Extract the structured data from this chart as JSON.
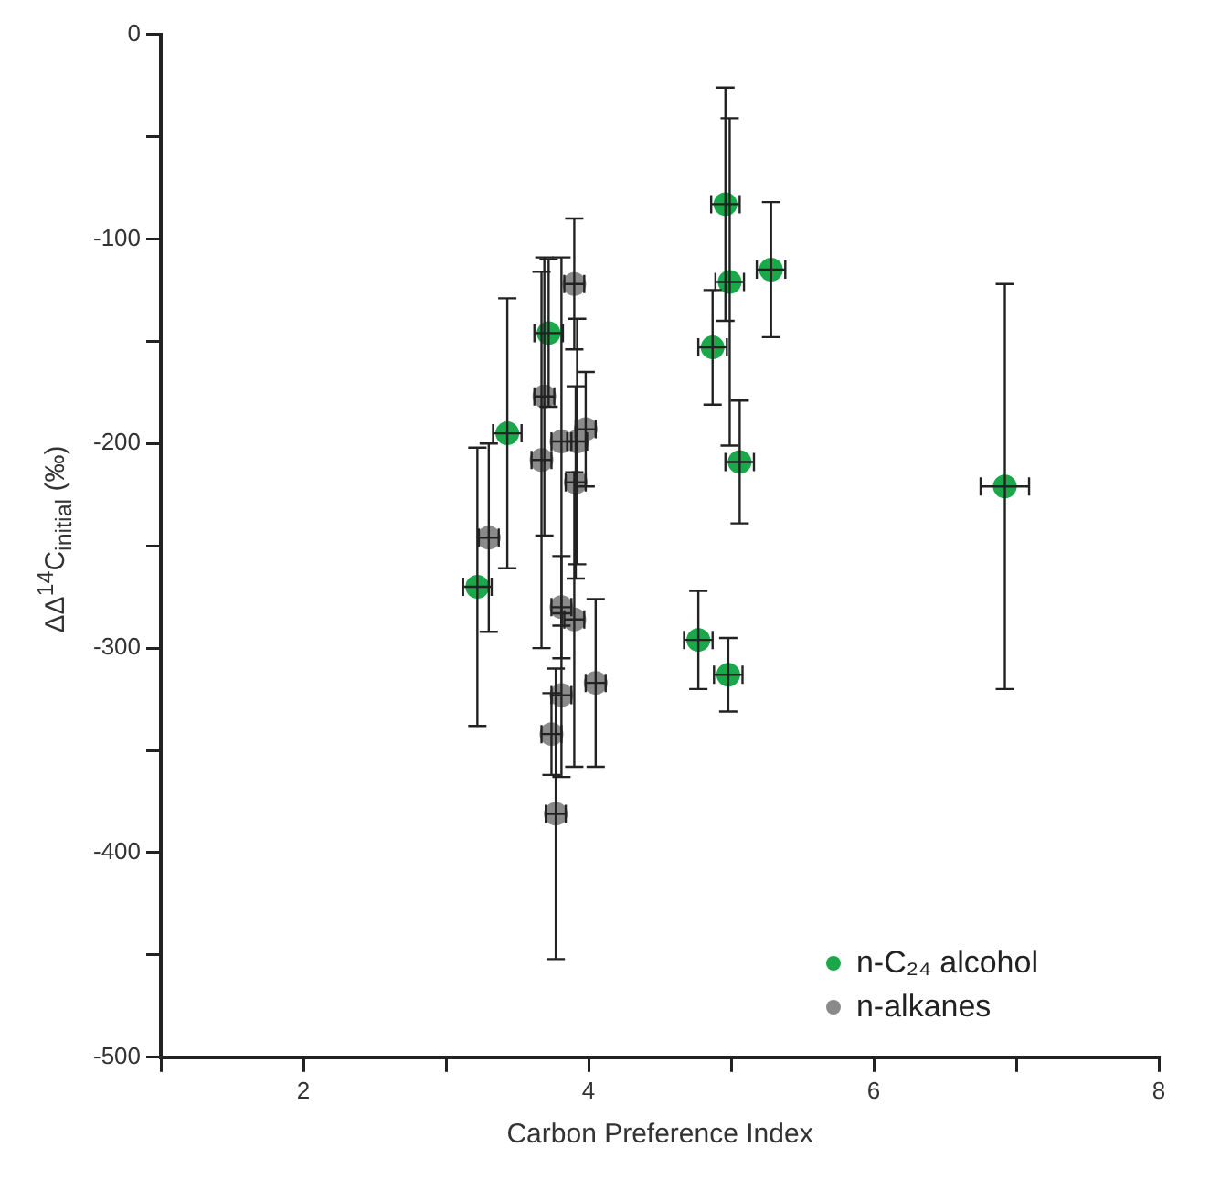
{
  "chart_data": {
    "type": "scatter",
    "xlabel": "Carbon Preference Index",
    "ylabel": "ΔΔ$^{14}$C$_{initial}$ (‰)",
    "xlim": [
      1,
      8
    ],
    "xticks": [
      {
        "value": 1,
        "label": null
      },
      2,
      {
        "value": 3,
        "label": null
      },
      4,
      {
        "value": 5,
        "label": null
      },
      6,
      {
        "value": 7,
        "label": null
      },
      8
    ],
    "ylim": [
      -500,
      0
    ],
    "yticks": [
      -500,
      {
        "value": -450,
        "label": null
      },
      -400,
      {
        "value": -350,
        "label": null
      },
      -300,
      {
        "value": -250,
        "label": null
      },
      -200,
      {
        "value": -150,
        "label": null
      },
      -100,
      {
        "value": -50,
        "label": null
      },
      0
    ],
    "grid": false,
    "legend": "bottom right",
    "marker": "circle",
    "series": [
      {
        "name": "n-C₂₄ alcohol",
        "color": "#1aa84a",
        "x": [
          4.96,
          4.99,
          5.28,
          4.87,
          5.06,
          4.77,
          4.98,
          3.72,
          3.43,
          3.22,
          6.92
        ],
        "values": [
          -83,
          -121,
          -115,
          -153,
          -209,
          -296,
          -313,
          -146,
          -195,
          -270,
          -221
        ],
        "errors": [
          57,
          80,
          33,
          28,
          30,
          24,
          18,
          36,
          66,
          68,
          99
        ],
        "xerrors": [
          0.1,
          0.1,
          0.1,
          0.1,
          0.1,
          0.1,
          0.1,
          0.1,
          0.1,
          0.1,
          0.17
        ]
      },
      {
        "name": "n-alkanes",
        "color": "#8a8a8a",
        "x": [
          3.9,
          3.69,
          3.81,
          3.92,
          3.98,
          3.67,
          3.91,
          3.3,
          3.81,
          3.9,
          4.05,
          3.81,
          3.74,
          3.77
        ],
        "values": [
          -122,
          -177,
          -199,
          -199,
          -193,
          -208,
          -219,
          -246,
          -280,
          -286,
          -317,
          -323,
          -342,
          -381
        ],
        "errors": [
          32,
          68,
          90,
          60,
          28,
          92,
          47,
          46,
          25,
          72,
          41,
          40,
          20,
          71
        ],
        "xerrors": [
          0.07,
          0.07,
          0.07,
          0.07,
          0.07,
          0.07,
          0.07,
          0.07,
          0.07,
          0.07,
          0.07,
          0.07,
          0.07,
          0.07
        ]
      }
    ]
  }
}
